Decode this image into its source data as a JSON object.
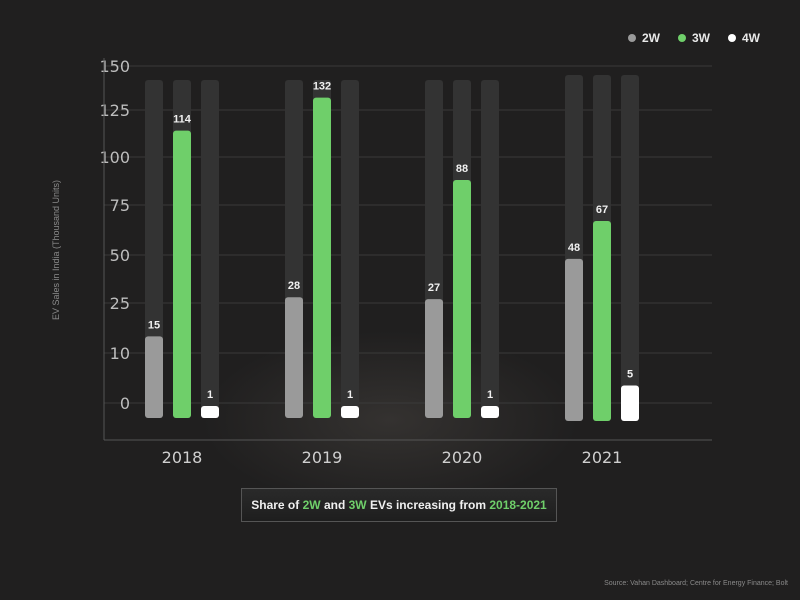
{
  "chart_data": {
    "type": "bar",
    "categories": [
      "2018",
      "2019",
      "2020",
      "2021"
    ],
    "series": [
      {
        "name": "2W",
        "values": [
          15,
          28,
          27,
          48
        ],
        "color": "#9a9a9a"
      },
      {
        "name": "3W",
        "values": [
          114,
          132,
          88,
          67
        ],
        "color": "#6fcf6a"
      },
      {
        "name": "4W",
        "values": [
          1,
          1,
          1,
          5
        ],
        "color": "#ffffff"
      }
    ],
    "ylabel": "EV Sales in India (Thousand Units)",
    "yticks": [
      150,
      125,
      100,
      75,
      50,
      25,
      10,
      0
    ],
    "ylim": [
      0,
      150
    ],
    "grid": true,
    "legend": "top-right",
    "data_labels": true
  },
  "legend": {
    "items": [
      "2W",
      "3W",
      "4W"
    ]
  },
  "callout": {
    "prefix": "Share of ",
    "w2": "2W",
    "and": " and ",
    "w3": "3W",
    "mid": " EVs increasing from ",
    "years": "2018-2021"
  },
  "source": "Source: Vahan Dashboard; Centre for Energy Finance; Bolt"
}
